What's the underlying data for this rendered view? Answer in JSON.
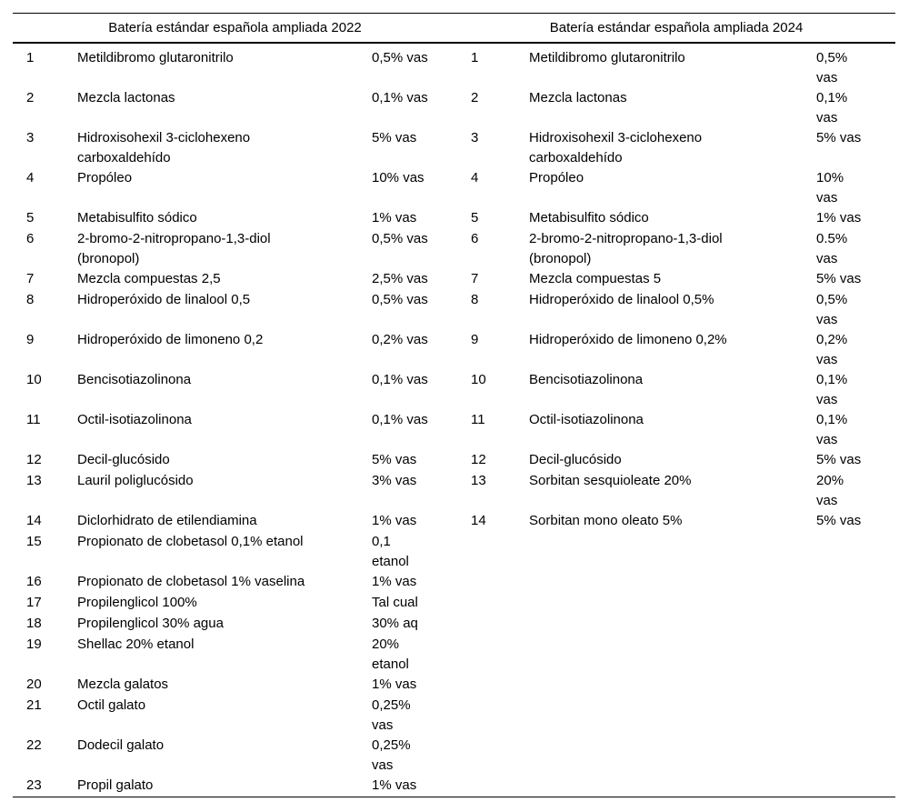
{
  "page": {
    "background": "#ffffff",
    "text_color": "#000000",
    "rule_color": "#000000"
  },
  "table": {
    "left_title": "Batería estándar española ampliada 2022",
    "right_title": "Batería estándar española ampliada 2024",
    "rows": [
      {
        "l_num": "1",
        "l_name": "Metildibromo glutaronitrilo",
        "l_dose": "0,5% vas",
        "r_num": "1",
        "r_name": "Metildibromo glutaronitrilo",
        "r_dose": "0,5%\nvas"
      },
      {
        "l_num": "2",
        "l_name": "Mezcla lactonas",
        "l_dose": "0,1% vas",
        "r_num": "2",
        "r_name": "Mezcla lactonas",
        "r_dose": "0,1%\nvas"
      },
      {
        "l_num": "3",
        "l_name": "Hidroxisohexil 3-ciclohexeno\ncarboxaldehído",
        "l_dose": "5% vas",
        "r_num": "3",
        "r_name": "Hidroxisohexil 3-ciclohexeno\ncarboxaldehído",
        "r_dose": "5% vas"
      },
      {
        "l_num": "4",
        "l_name": "Propóleo",
        "l_dose": "10% vas",
        "r_num": "4",
        "r_name": "Propóleo",
        "r_dose": "10%\nvas"
      },
      {
        "l_num": "5",
        "l_name": "Metabisulfito sódico",
        "l_dose": "1% vas",
        "r_num": "5",
        "r_name": "Metabisulfito sódico",
        "r_dose": "1% vas"
      },
      {
        "l_num": "6",
        "l_name": "2-bromo-2-nitropropano-1,3-diol\n(bronopol)",
        "l_dose": "0,5% vas",
        "r_num": "6",
        "r_name": "2-bromo-2-nitropropano-1,3-diol\n(bronopol)",
        "r_dose": "0.5%\nvas"
      },
      {
        "l_num": "7",
        "l_name": "Mezcla compuestas 2,5",
        "l_dose": "2,5% vas",
        "r_num": "7",
        "r_name": "Mezcla compuestas 5",
        "r_dose": "5% vas"
      },
      {
        "l_num": "8",
        "l_name": "Hidroperóxido de linalool 0,5",
        "l_dose": "0,5% vas",
        "r_num": "8",
        "r_name": "Hidroperóxido de linalool 0,5%",
        "r_dose": "0,5%\nvas"
      },
      {
        "l_num": "9",
        "l_name": "Hidroperóxido de limoneno 0,2",
        "l_dose": "0,2% vas",
        "r_num": "9",
        "r_name": "Hidroperóxido de limoneno 0,2%",
        "r_dose": "0,2%\nvas"
      },
      {
        "l_num": "10",
        "l_name": "Bencisotiazolinona",
        "l_dose": "0,1% vas",
        "r_num": "10",
        "r_name": "Bencisotiazolinona",
        "r_dose": "0,1%\nvas"
      },
      {
        "l_num": "11",
        "l_name": "Octil-isotiazolinona",
        "l_dose": "0,1% vas",
        "r_num": "11",
        "r_name": "Octil-isotiazolinona",
        "r_dose": "0,1%\nvas"
      },
      {
        "l_num": "12",
        "l_name": "Decil-glucósido",
        "l_dose": "5% vas",
        "r_num": "12",
        "r_name": "Decil-glucósido",
        "r_dose": "5% vas"
      },
      {
        "l_num": "13",
        "l_name": "Lauril poliglucósido",
        "l_dose": "3% vas",
        "r_num": "13",
        "r_name": "Sorbitan sesquioleate 20%",
        "r_dose": "20%\nvas"
      },
      {
        "l_num": "14",
        "l_name": "Diclorhidrato de etilendiamina",
        "l_dose": "1% vas",
        "r_num": "14",
        "r_name": "Sorbitan mono oleato 5%",
        "r_dose": "5% vas"
      },
      {
        "l_num": "15",
        "l_name": "Propionato de clobetasol 0,1% etanol",
        "l_dose": "0,1\netanol",
        "r_num": "",
        "r_name": "",
        "r_dose": ""
      },
      {
        "l_num": "16",
        "l_name": "Propionato de clobetasol 1% vaselina",
        "l_dose": "1% vas",
        "r_num": "",
        "r_name": "",
        "r_dose": ""
      },
      {
        "l_num": "17",
        "l_name": "Propilenglicol 100%",
        "l_dose": "Tal cual",
        "r_num": "",
        "r_name": "",
        "r_dose": ""
      },
      {
        "l_num": "18",
        "l_name": "Propilenglicol 30% agua",
        "l_dose": "30% aq",
        "r_num": "",
        "r_name": "",
        "r_dose": ""
      },
      {
        "l_num": "19",
        "l_name": "Shellac 20% etanol",
        "l_dose": "20%\netanol",
        "r_num": "",
        "r_name": "",
        "r_dose": ""
      },
      {
        "l_num": "20",
        "l_name": "Mezcla galatos",
        "l_dose": "1% vas",
        "r_num": "",
        "r_name": "",
        "r_dose": ""
      },
      {
        "l_num": "21",
        "l_name": "Octil galato",
        "l_dose": "0,25%\nvas",
        "r_num": "",
        "r_name": "",
        "r_dose": ""
      },
      {
        "l_num": "22",
        "l_name": "Dodecil galato",
        "l_dose": "0,25%\nvas",
        "r_num": "",
        "r_name": "",
        "r_dose": ""
      },
      {
        "l_num": "23",
        "l_name": "Propil galato",
        "l_dose": "1% vas",
        "r_num": "",
        "r_name": "",
        "r_dose": ""
      }
    ]
  }
}
